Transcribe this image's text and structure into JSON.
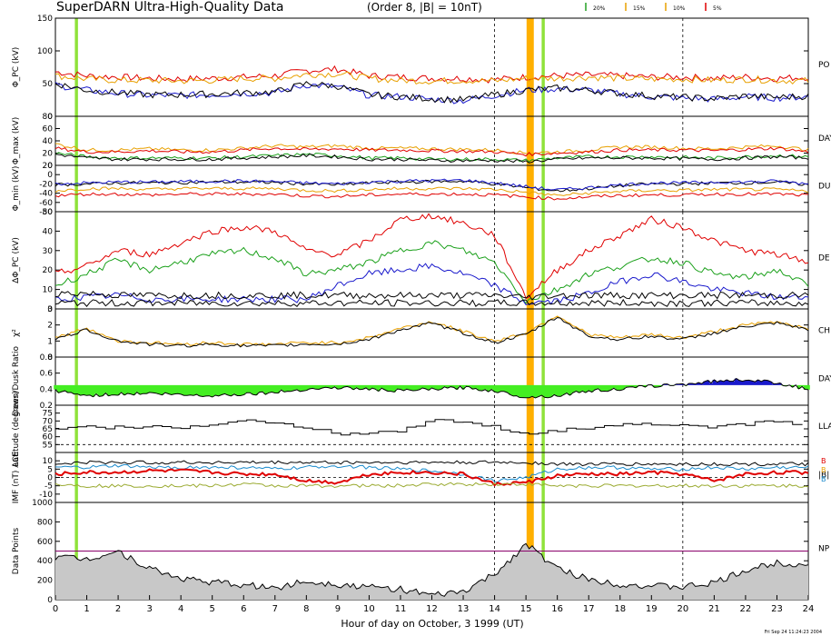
{
  "header": {
    "title": "SuperDARN Ultra-High-Quality Data",
    "subtitle": "(Order 8, |B| = 10nT)",
    "legend": [
      {
        "label": "20%",
        "color": "#22a022"
      },
      {
        "label": "15%",
        "color": "#e8a000"
      },
      {
        "label": "10%",
        "color": "#e8a000"
      },
      {
        "label": "5%",
        "color": "#e00000"
      }
    ],
    "timestamp": "Fri Sep 24 11:24:23 2004"
  },
  "colors": {
    "green_band": "#8fe23a",
    "orange_band": "#ffb000",
    "fill_green": "#44ee22",
    "fill_blue": "#1a1acc",
    "fill_gray": "#c8c8c8",
    "series": [
      "#000000",
      "#1a1acc",
      "#1aa01a",
      "#e8a000",
      "#e00000"
    ]
  },
  "chart_data": {
    "type": "line",
    "xlabel": "Hour of day on October, 3 1999 (UT)",
    "xlim": [
      0,
      24
    ],
    "x_ticks": [
      "0",
      "1",
      "2",
      "3",
      "4",
      "5",
      "6",
      "7",
      "8",
      "9",
      "10",
      "11",
      "12",
      "13",
      "14",
      "15",
      "16",
      "17",
      "18",
      "19",
      "20",
      "21",
      "22",
      "23",
      "24"
    ],
    "dashed_hours": [
      14,
      20
    ],
    "highlight_bands": [
      {
        "from": 0.62,
        "to": 0.72,
        "color": "green"
      },
      {
        "from": 15.02,
        "to": 15.25,
        "color": "orange"
      },
      {
        "from": 15.5,
        "to": 15.6,
        "color": "green"
      }
    ],
    "panels": [
      {
        "id": "phi-pc",
        "ylabel": "Φ_PC (kV)",
        "ylim": [
          0,
          150
        ],
        "ticks": [
          "150",
          "100",
          "50",
          "0"
        ],
        "right_label": "PO",
        "series": [
          {
            "color": "#e00000",
            "values": [
              68,
              62,
              60,
              58,
              57,
              58,
              60,
              62,
              70,
              72,
              62,
              60,
              58,
              58,
              56,
              60,
              62,
              63,
              62,
              60,
              60,
              58,
              60,
              58,
              60
            ]
          },
          {
            "color": "#e8a000",
            "values": [
              62,
              57,
              55,
              55,
              54,
              55,
              58,
              58,
              64,
              65,
              58,
              55,
              54,
              55,
              54,
              58,
              58,
              60,
              58,
              57,
              57,
              55,
              57,
              55,
              54
            ]
          },
          {
            "color": "#1a1acc",
            "values": [
              48,
              40,
              35,
              32,
              32,
              33,
              35,
              36,
              48,
              45,
              32,
              30,
              26,
              24,
              32,
              40,
              42,
              40,
              34,
              30,
              28,
              26,
              30,
              28,
              30
            ]
          },
          {
            "color": "#000000",
            "values": [
              50,
              40,
              36,
              33,
              33,
              34,
              36,
              37,
              50,
              46,
              33,
              30,
              27,
              25,
              33,
              40,
              43,
              40,
              35,
              31,
              29,
              27,
              31,
              29,
              31
            ]
          }
        ]
      },
      {
        "id": "phi-max",
        "ylabel": "Φ_max (kV)",
        "ylim": [
          0,
          80
        ],
        "ticks": [
          "80",
          "60",
          "40",
          "20",
          "0"
        ],
        "right_label": "DAY",
        "series": [
          {
            "color": "#e8a000",
            "values": [
              35,
              25,
              25,
              27,
              25,
              25,
              28,
              32,
              30,
              32,
              28,
              28,
              27,
              26,
              25,
              20,
              22,
              25,
              30,
              30,
              28,
              27,
              30,
              32,
              25
            ]
          },
          {
            "color": "#e00000",
            "values": [
              28,
              22,
              22,
              24,
              22,
              22,
              25,
              28,
              26,
              27,
              25,
              25,
              24,
              23,
              22,
              18,
              20,
              22,
              25,
              25,
              25,
              24,
              26,
              28,
              22
            ]
          },
          {
            "color": "#1aa01a",
            "values": [
              20,
              14,
              12,
              12,
              12,
              12,
              14,
              16,
              18,
              16,
              12,
              12,
              10,
              10,
              10,
              8,
              12,
              14,
              14,
              14,
              13,
              12,
              14,
              16,
              14
            ]
          },
          {
            "color": "#000000",
            "values": [
              18,
              12,
              10,
              10,
              10,
              10,
              12,
              14,
              16,
              14,
              10,
              10,
              8,
              8,
              8,
              6,
              10,
              12,
              12,
              12,
              11,
              10,
              12,
              14,
              12
            ]
          }
        ]
      },
      {
        "id": "phi-min",
        "ylabel": "Φ_min (kV)",
        "ylim": [
          -80,
          20
        ],
        "ticks": [
          "20",
          "0",
          "-20",
          "-40",
          "-60",
          "-80"
        ],
        "right_label": "DU",
        "series": [
          {
            "color": "#000000",
            "values": [
              -22,
              -20,
              -18,
              -18,
              -17,
              -16,
              -16,
              -17,
              -20,
              -22,
              -18,
              -16,
              -15,
              -14,
              -20,
              -28,
              -35,
              -30,
              -24,
              -20,
              -20,
              -18,
              -18,
              -16,
              -22
            ]
          },
          {
            "color": "#1a1acc",
            "values": [
              -20,
              -18,
              -16,
              -16,
              -15,
              -14,
              -14,
              -15,
              -18,
              -20,
              -16,
              -14,
              -13,
              -12,
              -18,
              -26,
              -33,
              -28,
              -22,
              -18,
              -18,
              -16,
              -16,
              -14,
              -20
            ]
          },
          {
            "color": "#e8a000",
            "values": [
              -35,
              -30,
              -30,
              -32,
              -30,
              -30,
              -30,
              -30,
              -34,
              -35,
              -32,
              -30,
              -30,
              -30,
              -32,
              -38,
              -45,
              -40,
              -36,
              -34,
              -34,
              -32,
              -32,
              -32,
              -36
            ]
          },
          {
            "color": "#e00000",
            "values": [
              -45,
              -42,
              -42,
              -44,
              -42,
              -42,
              -42,
              -42,
              -46,
              -47,
              -44,
              -42,
              -42,
              -42,
              -44,
              -48,
              -52,
              -48,
              -45,
              -44,
              -44,
              -42,
              -42,
              -42,
              -45
            ]
          }
        ]
      },
      {
        "id": "delta-phi-pc",
        "ylabel": "ΔΦ_PC (kV)",
        "ylim": [
          0,
          50
        ],
        "ticks": [
          "50",
          "40",
          "30",
          "20",
          "10",
          "0"
        ],
        "right_label": "DE",
        "series": [
          {
            "color": "#e00000",
            "values": [
              18,
              22,
              30,
              28,
              34,
              40,
              42,
              40,
              30,
              28,
              35,
              46,
              48,
              44,
              38,
              6,
              20,
              30,
              38,
              46,
              42,
              35,
              30,
              28,
              24
            ]
          },
          {
            "color": "#1aa01a",
            "values": [
              12,
              18,
              25,
              20,
              24,
              28,
              30,
              26,
              18,
              20,
              24,
              30,
              34,
              30,
              24,
              4,
              10,
              18,
              22,
              26,
              24,
              18,
              16,
              20,
              12
            ]
          },
          {
            "color": "#1a1acc",
            "values": [
              5,
              6,
              7,
              5,
              5,
              5,
              5,
              5,
              5,
              12,
              18,
              20,
              22,
              18,
              12,
              3,
              4,
              8,
              14,
              18,
              14,
              10,
              8,
              6,
              6
            ]
          },
          {
            "color": "#000000",
            "values": [
              8,
              8,
              7,
              7,
              7,
              7,
              7,
              7,
              7,
              7,
              7,
              7,
              7,
              7,
              7,
              6,
              7,
              7,
              7,
              7,
              7,
              7,
              7,
              7,
              7
            ]
          },
          {
            "color": "#000000",
            "values": [
              3,
              3,
              3,
              3,
              3,
              3,
              3,
              3,
              3,
              3,
              3,
              3,
              3,
              3,
              3,
              3,
              3,
              3,
              3,
              3,
              3,
              3,
              3,
              3,
              3
            ]
          }
        ]
      },
      {
        "id": "chi",
        "ylabel": "χ²",
        "ylim": [
          0,
          3
        ],
        "ticks": [
          "3",
          "2",
          "1",
          "0"
        ],
        "right_label": "CH",
        "series": [
          {
            "color": "#e8a000",
            "values": [
              1.2,
              1.8,
              1.0,
              0.9,
              0.8,
              0.9,
              0.8,
              0.8,
              0.9,
              0.9,
              1.2,
              1.8,
              2.2,
              1.6,
              1.0,
              1.5,
              2.6,
              1.4,
              1.2,
              1.4,
              1.2,
              1.6,
              2.0,
              2.2,
              1.8
            ]
          },
          {
            "color": "#000000",
            "values": [
              1.1,
              1.7,
              1.0,
              0.8,
              0.7,
              0.8,
              0.7,
              0.7,
              0.8,
              0.8,
              1.1,
              1.7,
              2.1,
              1.5,
              0.9,
              1.4,
              2.5,
              1.3,
              1.1,
              1.3,
              1.1,
              1.5,
              1.9,
              2.1,
              1.7
            ]
          }
        ]
      },
      {
        "id": "ratio",
        "ylabel": "Dawn/Dusk Ratio",
        "ylim": [
          0.2,
          0.8
        ],
        "ticks": [
          "0.8",
          "0.6",
          "0.4",
          "0.2"
        ],
        "right_label": "DAY",
        "baseline": 0.45,
        "series": [
          {
            "color": "#000000",
            "values": [
              0.38,
              0.32,
              0.34,
              0.35,
              0.33,
              0.32,
              0.34,
              0.36,
              0.4,
              0.42,
              0.4,
              0.38,
              0.4,
              0.42,
              0.38,
              0.3,
              0.32,
              0.38,
              0.4,
              0.44,
              0.46,
              0.5,
              0.52,
              0.48,
              0.4
            ]
          }
        ]
      },
      {
        "id": "latitude",
        "ylabel": "Latitude (degrees)",
        "ylim": [
          50,
          80
        ],
        "ticks": [
          "75",
          "70",
          "65",
          "60",
          "55"
        ],
        "right_label": "LLA",
        "dashed_level": 55,
        "series": [
          {
            "color": "#000000",
            "values": [
              65,
              66,
              66,
              66,
              66,
              68,
              70,
              68,
              66,
              62,
              62,
              64,
              70,
              70,
              66,
              62,
              64,
              66,
              68,
              68,
              68,
              66,
              68,
              70,
              66
            ]
          }
        ]
      },
      {
        "id": "imf",
        "ylabel": "IMF (nT) ACE",
        "ylim": [
          -15,
          15
        ],
        "ticks": [
          "10",
          "5",
          "0",
          "-5",
          "-10"
        ],
        "right_label": "|B|",
        "side_labels": [
          {
            "text": "B",
            "color": "#e00000"
          },
          {
            "text": "B",
            "color": "#e8a000"
          },
          {
            "text": "B",
            "color": "#1a8acc"
          }
        ],
        "series": [
          {
            "color": "#000000",
            "values": [
              8,
              9,
              9,
              9,
              9,
              9,
              9,
              9,
              9,
              9,
              9,
              9,
              9,
              9,
              9,
              9,
              8,
              8,
              8,
              8,
              8,
              8,
              8,
              8,
              8
            ]
          },
          {
            "color": "#1a8acc",
            "values": [
              6,
              6,
              7,
              6,
              6,
              6,
              6,
              5,
              6,
              7,
              6,
              5,
              4,
              2,
              -2,
              0,
              5,
              6,
              6,
              5,
              5,
              6,
              5,
              6,
              6
            ]
          },
          {
            "color": "#e00000",
            "values": [
              2,
              3,
              3,
              4,
              4,
              3,
              2,
              2,
              -2,
              -3,
              2,
              3,
              3,
              2,
              -4,
              -3,
              1,
              2,
              2,
              3,
              2,
              -2,
              2,
              3,
              3
            ]
          },
          {
            "color": "#9aaa30",
            "values": [
              -4,
              -5,
              -5,
              -5,
              -5,
              -5,
              -4,
              -5,
              -5,
              -5,
              -5,
              -5,
              -4,
              -4,
              -4,
              -4,
              -5,
              -5,
              -5,
              -5,
              -5,
              -5,
              -5,
              -5,
              -5
            ]
          }
        ]
      },
      {
        "id": "points",
        "ylabel": "Data Points",
        "ylim": [
          0,
          1000
        ],
        "ticks": [
          "1000",
          "800",
          "600",
          "400",
          "200",
          "0"
        ],
        "right_label": "NP",
        "threshold": 500,
        "threshold_color": "#8a006a",
        "series": [
          {
            "color": "#000000",
            "values": [
              440,
              420,
              500,
              320,
              220,
              180,
              150,
              120,
              190,
              160,
              130,
              110,
              40,
              80,
              260,
              570,
              320,
              210,
              160,
              140,
              130,
              170,
              300,
              380,
              360
            ]
          }
        ]
      }
    ]
  }
}
